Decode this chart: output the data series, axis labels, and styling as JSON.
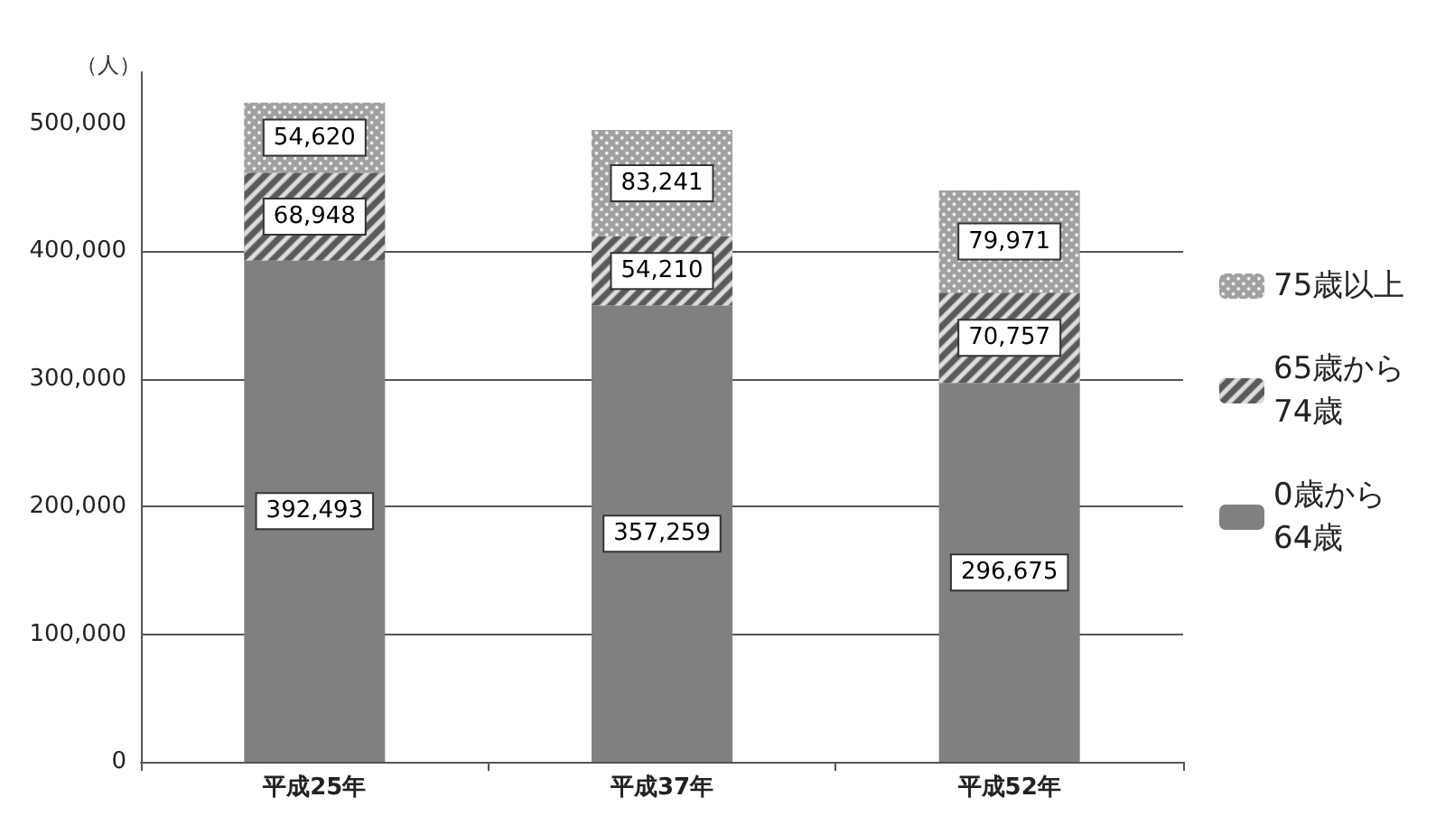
{
  "chart_data": {
    "type": "bar",
    "stacked": true,
    "ylabel": "（人）",
    "categories": [
      "平成25年",
      "平成37年",
      "平成52年"
    ],
    "series": [
      {
        "name": "0歳から64歳",
        "color": "#808080",
        "values": [
          392493,
          357259,
          296675
        ],
        "value_labels": [
          "392,493",
          "357,259",
          "296,675"
        ]
      },
      {
        "name": "65歳から74歳",
        "color": "#5a5a5a",
        "values": [
          68948,
          54210,
          70757
        ],
        "value_labels": [
          "68,948",
          "54,210",
          "70,757"
        ]
      },
      {
        "name": "75歳以上",
        "color": "#a0a0a0",
        "values": [
          54620,
          83241,
          79971
        ],
        "value_labels": [
          "54,620",
          "83,241",
          "79,971"
        ]
      }
    ],
    "ylim": [
      0,
      540000
    ],
    "yticks": [
      0,
      {
        "value": 100000,
        "label": "100,000"
      },
      {
        "value": 200000,
        "label": "200,000"
      },
      {
        "value": 300000,
        "label": "300,000"
      },
      {
        "value": 400000,
        "label": "400,000"
      },
      {
        "value": 500000,
        "label": "500,000"
      }
    ],
    "grid": "y",
    "legend": "right"
  }
}
